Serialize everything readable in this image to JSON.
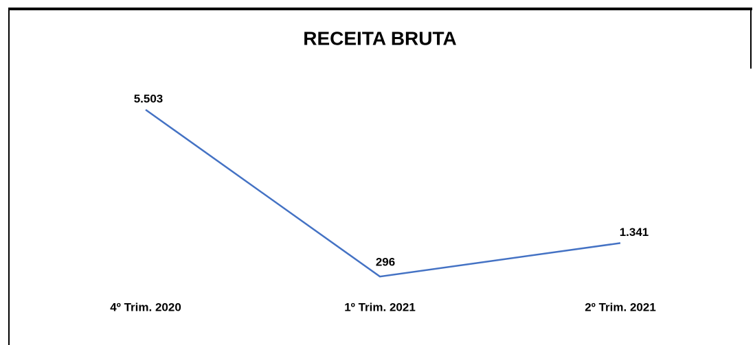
{
  "chart_data": {
    "type": "line",
    "title": "RECEITA BRUTA",
    "categories": [
      "4º Trim. 2020",
      "1º Trim. 2021",
      "2º Trim. 2021"
    ],
    "values": [
      5503,
      296,
      1341
    ],
    "value_labels": [
      "5.503",
      "296",
      "1.341"
    ],
    "color": "#4472c4"
  }
}
